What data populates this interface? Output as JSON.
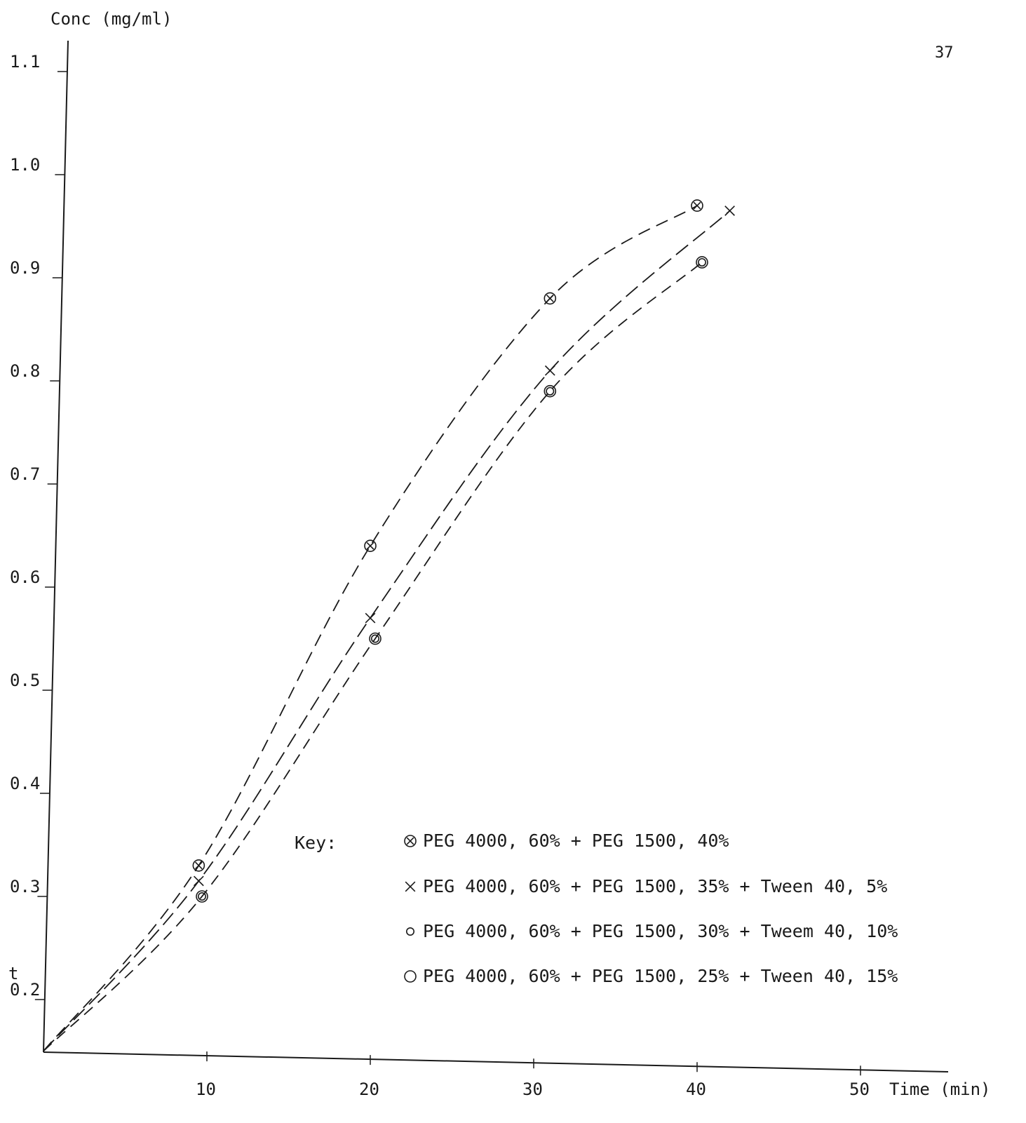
{
  "page_number": "37",
  "chart_data": {
    "type": "line",
    "ylabel": "Conc (mg/ml)",
    "xlabel": "Time (min)",
    "xlim": [
      0,
      55
    ],
    "ylim": [
      0.15,
      1.1
    ],
    "x_ticks": [
      "10",
      "20",
      "30",
      "40",
      "50"
    ],
    "y_ticks": [
      "0.2",
      "0.3",
      "0.4",
      "0.5",
      "0.6",
      "0.7",
      "0.8",
      "0.9",
      "1.0",
      "1.1"
    ],
    "y_tick_values": [
      0.2,
      0.3,
      0.4,
      0.5,
      0.6,
      0.7,
      0.8,
      0.9,
      1.0,
      1.1
    ],
    "x_tick_values": [
      10,
      20,
      30,
      40,
      50
    ],
    "stray_mark": "t",
    "grid": false,
    "line_style": "dashed",
    "legend_title": "Key:",
    "legend_position": "bottom-right",
    "series": [
      {
        "name": "PEG 4000, 60% + PEG 1500, 40%",
        "marker": "circle-x",
        "x": [
          0,
          9.5,
          20,
          31,
          40
        ],
        "y": [
          0.15,
          0.33,
          0.64,
          0.88,
          0.97
        ]
      },
      {
        "name": "PEG 4000, 60% + PEG 1500, 35% + Tween 40, 5%",
        "marker": "x",
        "x": [
          0,
          9.5,
          20,
          31,
          42
        ],
        "y": [
          0.15,
          0.315,
          0.57,
          0.81,
          0.965
        ]
      },
      {
        "name": "PEG 4000, 60% + PEG 1500, 30% + Tweem 40, 10%",
        "marker": "small-circle",
        "x": [
          0,
          9.7,
          20.3,
          31,
          40.3
        ],
        "y": [
          0.15,
          0.3,
          0.55,
          0.79,
          0.915
        ]
      },
      {
        "name": "PEG 4000, 60% + PEG 1500, 25% + Tween 40, 15%",
        "marker": "circle",
        "x": [
          0,
          9.7,
          20.3,
          31,
          40.3
        ],
        "y": [
          0.15,
          0.3,
          0.55,
          0.79,
          0.915
        ]
      }
    ]
  }
}
